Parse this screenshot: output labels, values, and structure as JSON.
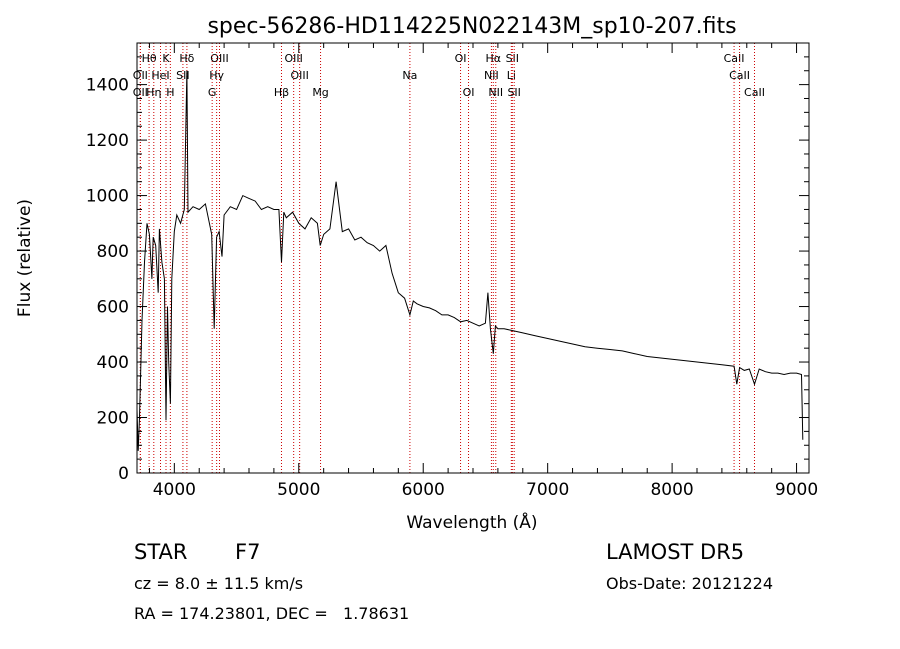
{
  "chart_data": {
    "type": "line",
    "title": "spec-56286-HD114225N022143M_sp10-207.fits",
    "xlabel": "Wavelength (Å)",
    "ylabel": "Flux (relative)",
    "xlim": [
      3700,
      9100
    ],
    "ylim": [
      0,
      1550
    ],
    "xticks": [
      4000,
      5000,
      6000,
      7000,
      8000,
      9000
    ],
    "yticks": [
      0,
      200,
      400,
      600,
      800,
      1000,
      1200,
      1400
    ],
    "grid": false,
    "line_color": "#000000",
    "marker_color": "#cc0000",
    "series": [
      {
        "x": [
          3700,
          3710,
          3720,
          3740,
          3760,
          3780,
          3800,
          3820,
          3830,
          3850,
          3870,
          3880,
          3900,
          3920,
          3933,
          3945,
          3955,
          3968,
          3980,
          4000,
          4020,
          4050,
          4080,
          4101,
          4110,
          4150,
          4200,
          4250,
          4300,
          4320,
          4340,
          4360,
          4383,
          4400,
          4450,
          4500,
          4550,
          4600,
          4650,
          4700,
          4750,
          4800,
          4840,
          4861,
          4880,
          4900,
          4950,
          5000,
          5050,
          5100,
          5150,
          5172,
          5200,
          5250,
          5300,
          5350,
          5400,
          5450,
          5500,
          5550,
          5600,
          5650,
          5700,
          5750,
          5800,
          5850,
          5893,
          5920,
          5950,
          6000,
          6050,
          6100,
          6150,
          6200,
          6250,
          6300,
          6350,
          6400,
          6450,
          6500,
          6520,
          6540,
          6563,
          6580,
          6600,
          6650,
          6700,
          6750,
          6800,
          6900,
          7000,
          7100,
          7200,
          7300,
          7400,
          7500,
          7600,
          7700,
          7800,
          7900,
          8000,
          8100,
          8200,
          8300,
          8400,
          8498,
          8520,
          8542,
          8580,
          8620,
          8662,
          8700,
          8750,
          8800,
          8850,
          8900,
          8950,
          9000,
          9040,
          9050
        ],
        "y": [
          230,
          80,
          200,
          550,
          760,
          900,
          860,
          700,
          850,
          820,
          650,
          880,
          760,
          700,
          190,
          600,
          400,
          250,
          700,
          870,
          930,
          900,
          950,
          1450,
          940,
          960,
          950,
          970,
          860,
          520,
          850,
          870,
          780,
          930,
          960,
          950,
          1000,
          990,
          980,
          950,
          960,
          950,
          950,
          760,
          940,
          920,
          940,
          900,
          880,
          920,
          900,
          820,
          860,
          880,
          1050,
          870,
          880,
          840,
          850,
          830,
          820,
          800,
          820,
          720,
          650,
          630,
          570,
          620,
          610,
          600,
          595,
          585,
          570,
          570,
          560,
          545,
          550,
          540,
          530,
          540,
          650,
          520,
          430,
          530,
          520,
          520,
          515,
          510,
          505,
          495,
          485,
          475,
          465,
          455,
          450,
          445,
          440,
          430,
          420,
          415,
          410,
          405,
          400,
          395,
          390,
          385,
          320,
          380,
          370,
          375,
          320,
          375,
          365,
          360,
          360,
          355,
          360,
          360,
          355,
          120
        ]
      }
    ],
    "line_markers": [
      {
        "label": "Hθ",
        "x": 3797,
        "row": 1
      },
      {
        "label": "OII",
        "x": 3727,
        "row": 2
      },
      {
        "label": "OII",
        "x": 3727,
        "row": 3
      },
      {
        "label": "HeI",
        "x": 3889,
        "row": 2
      },
      {
        "label": "Hη",
        "x": 3835,
        "row": 3
      },
      {
        "label": "K",
        "x": 3933,
        "row": 1
      },
      {
        "label": "H",
        "x": 3968,
        "row": 3
      },
      {
        "label": "SII",
        "x": 4069,
        "row": 2
      },
      {
        "label": "Hδ",
        "x": 4101,
        "row": 1
      },
      {
        "label": "OIII",
        "x": 4363,
        "row": 1
      },
      {
        "label": "Hγ",
        "x": 4340,
        "row": 2
      },
      {
        "label": "G",
        "x": 4304,
        "row": 3
      },
      {
        "label": "Hβ",
        "x": 4861,
        "row": 3
      },
      {
        "label": "OIII",
        "x": 4959,
        "row": 1
      },
      {
        "label": "OIII",
        "x": 5007,
        "row": 2
      },
      {
        "label": "Mg",
        "x": 5175,
        "row": 3
      },
      {
        "label": "Na",
        "x": 5893,
        "row": 2
      },
      {
        "label": "OI",
        "x": 6300,
        "row": 1
      },
      {
        "label": "OI",
        "x": 6364,
        "row": 3
      },
      {
        "label": "Hα",
        "x": 6563,
        "row": 1
      },
      {
        "label": "NII",
        "x": 6548,
        "row": 2
      },
      {
        "label": "NII",
        "x": 6583,
        "row": 3
      },
      {
        "label": "SII",
        "x": 6716,
        "row": 1
      },
      {
        "label": "Li",
        "x": 6708,
        "row": 2
      },
      {
        "label": "SII",
        "x": 6731,
        "row": 3
      },
      {
        "label": "CaII",
        "x": 8498,
        "row": 1
      },
      {
        "label": "CaII",
        "x": 8542,
        "row": 2
      },
      {
        "label": "CaII",
        "x": 8662,
        "row": 3
      }
    ]
  },
  "info": {
    "class_label": "STAR",
    "subclass": "F7",
    "survey": "LAMOST DR5",
    "redshift_text": "cz = 8.0 ± 11.5 km/s",
    "obs_date_text": "Obs-Date: 20121224",
    "coords_text": "RA = 174.23801, DEC =   1.78631"
  }
}
